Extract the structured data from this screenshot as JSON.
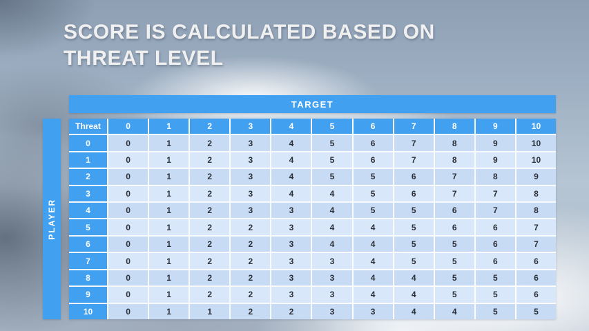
{
  "title": {
    "line1": "SCORE IS CALCULATED BASED ON",
    "line2": "THREAT LEVEL"
  },
  "table": {
    "target_label": "TARGET",
    "player_label": "PLAYER",
    "corner_label": "Threat",
    "column_headers": [
      "0",
      "1",
      "2",
      "3",
      "4",
      "5",
      "6",
      "7",
      "8",
      "9",
      "10"
    ],
    "rows": [
      {
        "label": "0",
        "values": [
          "0",
          "1",
          "2",
          "3",
          "4",
          "5",
          "6",
          "7",
          "8",
          "9",
          "10"
        ]
      },
      {
        "label": "1",
        "values": [
          "0",
          "1",
          "2",
          "3",
          "4",
          "5",
          "6",
          "7",
          "8",
          "9",
          "10"
        ]
      },
      {
        "label": "2",
        "values": [
          "0",
          "1",
          "2",
          "3",
          "4",
          "5",
          "5",
          "6",
          "7",
          "8",
          "9"
        ]
      },
      {
        "label": "3",
        "values": [
          "0",
          "1",
          "2",
          "3",
          "4",
          "4",
          "5",
          "6",
          "7",
          "7",
          "8"
        ]
      },
      {
        "label": "4",
        "values": [
          "0",
          "1",
          "2",
          "3",
          "3",
          "4",
          "5",
          "5",
          "6",
          "7",
          "8"
        ]
      },
      {
        "label": "5",
        "values": [
          "0",
          "1",
          "2",
          "2",
          "3",
          "4",
          "4",
          "5",
          "6",
          "6",
          "7"
        ]
      },
      {
        "label": "6",
        "values": [
          "0",
          "1",
          "2",
          "2",
          "3",
          "4",
          "4",
          "5",
          "5",
          "6",
          "7"
        ]
      },
      {
        "label": "7",
        "values": [
          "0",
          "1",
          "2",
          "2",
          "3",
          "3",
          "4",
          "5",
          "5",
          "6",
          "6"
        ]
      },
      {
        "label": "8",
        "values": [
          "0",
          "1",
          "2",
          "2",
          "3",
          "3",
          "4",
          "4",
          "5",
          "5",
          "6"
        ]
      },
      {
        "label": "9",
        "values": [
          "0",
          "1",
          "2",
          "2",
          "3",
          "3",
          "4",
          "4",
          "5",
          "5",
          "6"
        ]
      },
      {
        "label": "10",
        "values": [
          "0",
          "1",
          "1",
          "2",
          "2",
          "3",
          "3",
          "4",
          "4",
          "5",
          "5"
        ]
      }
    ]
  },
  "colors": {
    "accent": "#41A0F0",
    "row_even": "#C7DBF4",
    "row_odd": "#D9E7FA"
  }
}
